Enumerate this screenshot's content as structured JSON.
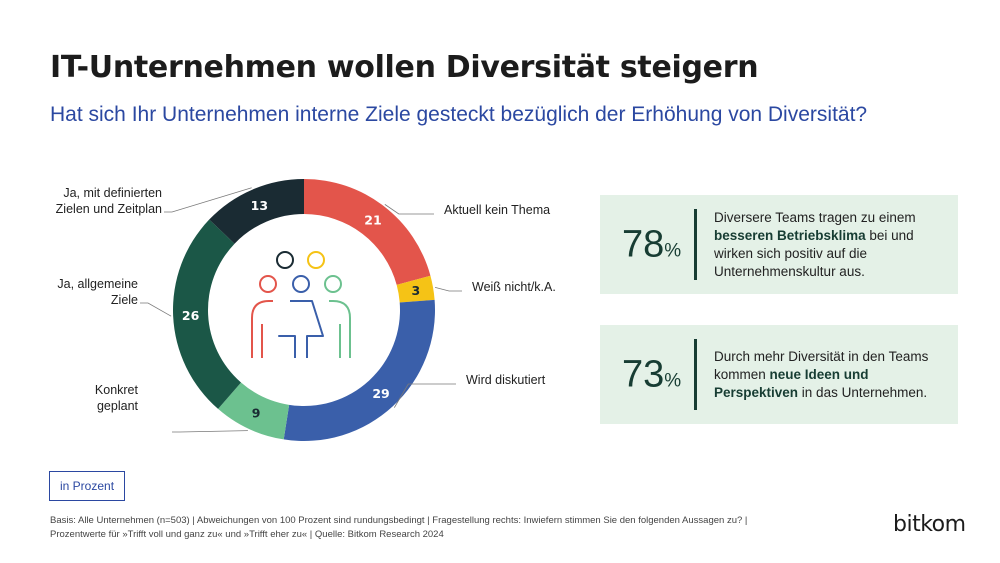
{
  "header": {
    "title": "IT-Unternehmen wollen Diversität steigern",
    "subtitle": "Hat sich Ihr Unternehmen interne Ziele gesteckt bezüglich der Erhöhung von Diversität?"
  },
  "chart_data": {
    "type": "pie",
    "variant": "donut",
    "unit": "Prozent",
    "slices": [
      {
        "label": "Aktuell kein Thema",
        "value": 21,
        "color": "#e3554b"
      },
      {
        "label": "Weiß nicht/k.A.",
        "value": 3,
        "color": "#f5c316"
      },
      {
        "label": "Wird diskutiert",
        "value": 29,
        "color": "#3a5faa"
      },
      {
        "label": "Konkret geplant",
        "value": 9,
        "color": "#6cc18f"
      },
      {
        "label": "Ja, allgemeine Ziele",
        "value": 26,
        "color": "#1b5747"
      },
      {
        "label": "Ja, mit definierten Zielen und Zeitplan",
        "value": 13,
        "color": "#1a2b33"
      }
    ],
    "label_lines": {
      "Aktuell kein Thema": [
        "Aktuell kein Thema"
      ],
      "Weiß nicht/k.A.": [
        "Weiß nicht/k.A."
      ],
      "Wird diskutiert": [
        "Wird diskutiert"
      ],
      "Konkret geplant": [
        "Konkret",
        "geplant"
      ],
      "Ja, allgemeine Ziele": [
        "Ja, allgemeine",
        "Ziele"
      ],
      "Ja, mit definierten Zielen und Zeitplan": [
        "Ja, mit definierten",
        "Zielen und Zeitplan"
      ]
    }
  },
  "stats": [
    {
      "value": "78",
      "unit": "%",
      "pre": "Diversere Teams tragen zu einem ",
      "bold": "besseren Betriebsklima",
      "post": " bei und wirken sich positiv auf die Unternehmenskultur aus."
    },
    {
      "value": "73",
      "unit": "%",
      "pre": "Durch mehr Diversität in den Teams kommen ",
      "bold": "neue Ideen und Perspektiven",
      "post": " in das Unternehmen."
    }
  ],
  "unit_label": "in Prozent",
  "footnote": {
    "line1": "Basis: Alle Unternehmen (n=503) | Abweichungen von 100 Prozent sind rundungsbedingt | Fragestellung rechts: Inwiefern stimmen Sie den folgenden Aussagen zu? |",
    "line2": "Prozentwerte für »Trifft voll und ganz zu« und »Trifft eher zu« | Quelle: Bitkom Research 2024"
  },
  "brand": "bitkom",
  "icon": "people-group-icon"
}
